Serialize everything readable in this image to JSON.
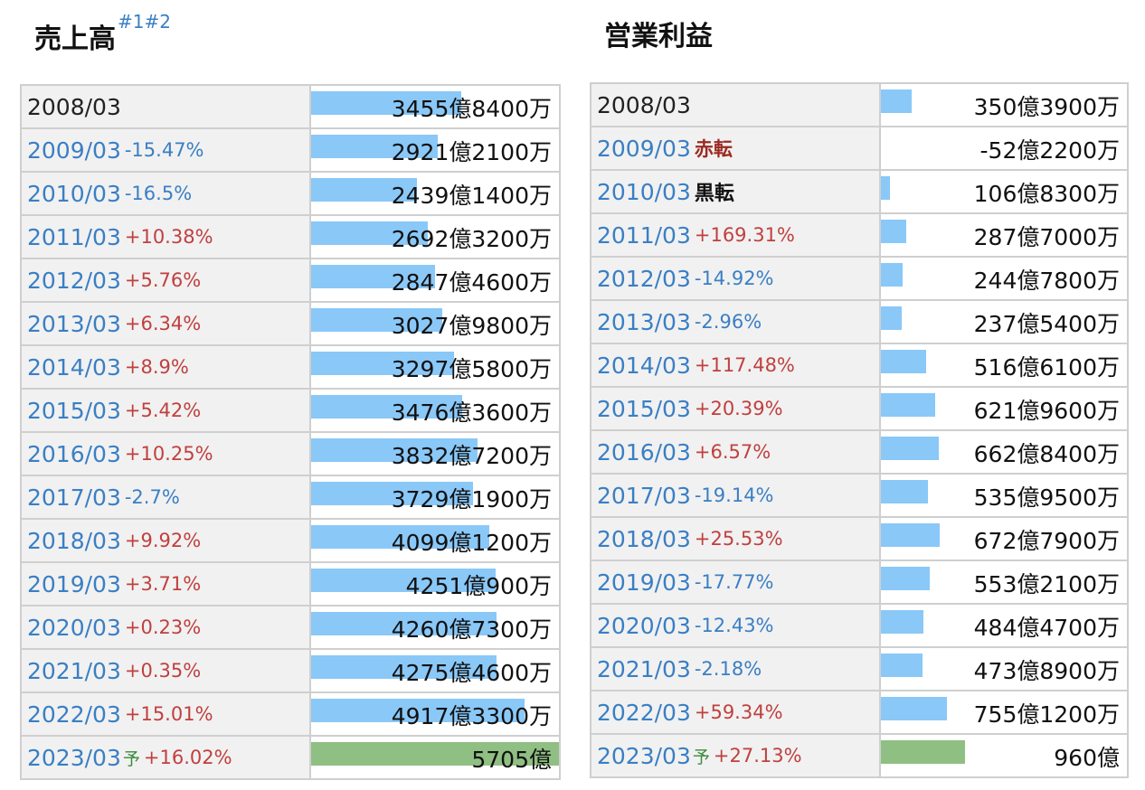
{
  "chart_data": [
    {
      "type": "bar",
      "title": "売上高",
      "title_notes": "#1#2",
      "max": 5705,
      "rows": [
        {
          "year": "2008/03",
          "change": "",
          "forecast": "",
          "value": 3455.84,
          "label": "3455億8400万"
        },
        {
          "year": "2009/03",
          "change": "-15.47%",
          "forecast": "",
          "value": 2921.21,
          "label": "2921億2100万"
        },
        {
          "year": "2010/03",
          "change": "-16.5%",
          "forecast": "",
          "value": 2439.14,
          "label": "2439億1400万"
        },
        {
          "year": "2011/03",
          "change": "+10.38%",
          "forecast": "",
          "value": 2692.32,
          "label": "2692億3200万"
        },
        {
          "year": "2012/03",
          "change": "+5.76%",
          "forecast": "",
          "value": 2847.46,
          "label": "2847億4600万"
        },
        {
          "year": "2013/03",
          "change": "+6.34%",
          "forecast": "",
          "value": 3027.98,
          "label": "3027億9800万"
        },
        {
          "year": "2014/03",
          "change": "+8.9%",
          "forecast": "",
          "value": 3297.58,
          "label": "3297億5800万"
        },
        {
          "year": "2015/03",
          "change": "+5.42%",
          "forecast": "",
          "value": 3476.36,
          "label": "3476億3600万"
        },
        {
          "year": "2016/03",
          "change": "+10.25%",
          "forecast": "",
          "value": 3832.72,
          "label": "3832億7200万"
        },
        {
          "year": "2017/03",
          "change": "-2.7%",
          "forecast": "",
          "value": 3729.19,
          "label": "3729億1900万"
        },
        {
          "year": "2018/03",
          "change": "+9.92%",
          "forecast": "",
          "value": 4099.12,
          "label": "4099億1200万"
        },
        {
          "year": "2019/03",
          "change": "+3.71%",
          "forecast": "",
          "value": 4251.09,
          "label": "4251億900万"
        },
        {
          "year": "2020/03",
          "change": "+0.23%",
          "forecast": "",
          "value": 4260.73,
          "label": "4260億7300万"
        },
        {
          "year": "2021/03",
          "change": "+0.35%",
          "forecast": "",
          "value": 4275.46,
          "label": "4275億4600万"
        },
        {
          "year": "2022/03",
          "change": "+15.01%",
          "forecast": "",
          "value": 4917.33,
          "label": "4917億3300万"
        },
        {
          "year": "2023/03",
          "change": "+16.02%",
          "forecast": "予",
          "value": 5705,
          "label": "5705億"
        }
      ]
    },
    {
      "type": "bar",
      "title": "営業利益",
      "title_notes": "",
      "max": 2800,
      "rows": [
        {
          "year": "2008/03",
          "change": "",
          "forecast": "",
          "value": 350.39,
          "label": "350億3900万"
        },
        {
          "year": "2009/03",
          "change": "赤転",
          "forecast": "",
          "value": -52.22,
          "label": "-52億2200万"
        },
        {
          "year": "2010/03",
          "change": "黒転",
          "forecast": "",
          "value": 106.83,
          "label": "106億8300万"
        },
        {
          "year": "2011/03",
          "change": "+169.31%",
          "forecast": "",
          "value": 287.7,
          "label": "287億7000万"
        },
        {
          "year": "2012/03",
          "change": "-14.92%",
          "forecast": "",
          "value": 244.78,
          "label": "244億7800万"
        },
        {
          "year": "2013/03",
          "change": "-2.96%",
          "forecast": "",
          "value": 237.54,
          "label": "237億5400万"
        },
        {
          "year": "2014/03",
          "change": "+117.48%",
          "forecast": "",
          "value": 516.61,
          "label": "516億6100万"
        },
        {
          "year": "2015/03",
          "change": "+20.39%",
          "forecast": "",
          "value": 621.96,
          "label": "621億9600万"
        },
        {
          "year": "2016/03",
          "change": "+6.57%",
          "forecast": "",
          "value": 662.84,
          "label": "662億8400万"
        },
        {
          "year": "2017/03",
          "change": "-19.14%",
          "forecast": "",
          "value": 535.95,
          "label": "535億9500万"
        },
        {
          "year": "2018/03",
          "change": "+25.53%",
          "forecast": "",
          "value": 672.79,
          "label": "672億7900万"
        },
        {
          "year": "2019/03",
          "change": "-17.77%",
          "forecast": "",
          "value": 553.21,
          "label": "553億2100万"
        },
        {
          "year": "2020/03",
          "change": "-12.43%",
          "forecast": "",
          "value": 484.47,
          "label": "484億4700万"
        },
        {
          "year": "2021/03",
          "change": "-2.18%",
          "forecast": "",
          "value": 473.89,
          "label": "473億8900万"
        },
        {
          "year": "2022/03",
          "change": "+59.34%",
          "forecast": "",
          "value": 755.12,
          "label": "755億1200万"
        },
        {
          "year": "2023/03",
          "change": "+27.13%",
          "forecast": "予",
          "value": 960,
          "label": "960億"
        }
      ]
    }
  ]
}
